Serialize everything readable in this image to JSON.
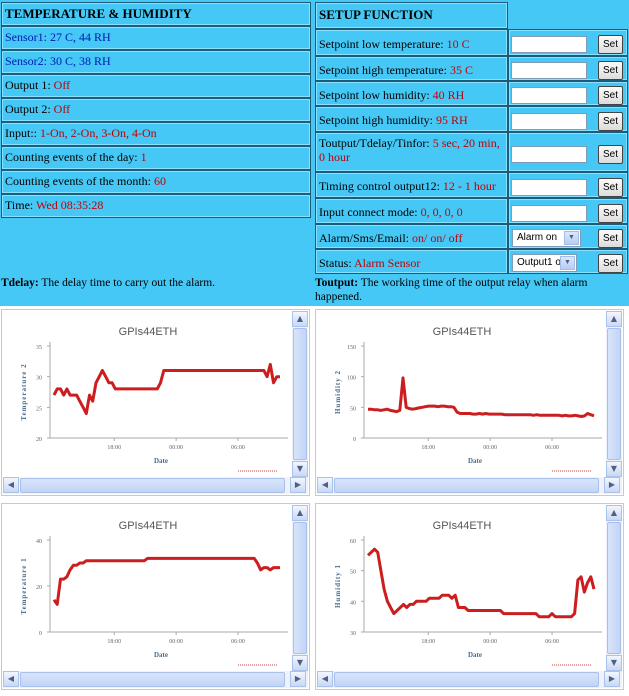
{
  "left_panel": {
    "title": "TEMPERATURE & HUMIDITY",
    "sensor1": "Sensor1: 27 C, 44 RH",
    "sensor2": "Sensor2: 30 C, 38 RH",
    "output1": {
      "label": "Output 1: ",
      "value": "Off"
    },
    "output2": {
      "label": "Output 2: ",
      "value": "Off"
    },
    "input": {
      "label": "Input:: ",
      "value": "1-On, 2-On, 3-On, 4-On"
    },
    "count_day": {
      "label": "Counting events of the day: ",
      "value": "1"
    },
    "count_month": {
      "label": "Counting events of the month: ",
      "value": "60"
    },
    "time": {
      "label": "Time: ",
      "value": "Wed 08:35:28"
    }
  },
  "right_panel": {
    "title": "SETUP FUNCTION",
    "rows": [
      {
        "label": "Setpoint low temperature: ",
        "value": "10 C",
        "button": "Set"
      },
      {
        "label": "Setpoint high temperature: ",
        "value": "35 C",
        "button": "Set"
      },
      {
        "label": "Setpoint low humidity: ",
        "value": "40 RH",
        "button": "Set"
      },
      {
        "label": "Setpoint high humidity: ",
        "value": "95 RH",
        "button": "Set"
      },
      {
        "label": "Toutput/Tdelay/Tinfor: ",
        "value": "5 sec, 20 min, 0 hour",
        "button": "Set"
      },
      {
        "label": "Timing control output12: ",
        "value": "12 - 1 hour",
        "button": "Set"
      },
      {
        "label": "Input connect mode: ",
        "value": "0, 0, 0, 0",
        "button": "Set"
      },
      {
        "label": "Alarm/Sms/Email: ",
        "value": "on/ on/ off",
        "button": "Set",
        "select": "Alarm on"
      },
      {
        "label": "Status: ",
        "value": "Alarm Sensor",
        "button": "Set",
        "select": "Output1 on"
      }
    ]
  },
  "notes": {
    "tdelay_term": "Tdelay:",
    "tdelay_text": " The delay time to carry out the alarm.",
    "toutput_term": "Toutput:",
    "toutput_text": " The working time of the output relay when alarm happened."
  },
  "colors": {
    "panel_bg": "#45c8f5",
    "value_red": "#c00000",
    "sensor_blue": "#0018b4",
    "line_red": "#cc1e1e"
  },
  "chart_data": [
    {
      "type": "line",
      "title": "GPIs44ETH",
      "xlabel": "Date",
      "ylabel": "Temperature 2",
      "x_ticks": [
        "18:00",
        "00:00",
        "06:00"
      ],
      "y_ticks": [
        20,
        25,
        30,
        35
      ],
      "ylim": [
        20,
        35
      ],
      "series": [
        {
          "values": [
            27,
            28,
            28,
            27,
            28,
            27,
            27,
            27,
            26,
            25,
            24,
            27,
            26,
            29,
            30,
            31,
            30,
            29,
            29,
            28,
            28,
            28,
            28,
            28,
            28,
            28,
            28,
            28,
            28,
            28,
            28,
            28,
            28,
            29,
            31,
            31,
            31,
            31,
            31,
            31,
            31,
            31,
            31,
            31,
            31,
            31,
            31,
            31,
            31,
            31,
            31,
            31,
            31,
            31,
            31,
            31,
            31,
            31,
            31,
            31,
            31,
            31,
            31,
            31,
            31,
            31,
            30,
            32,
            29,
            30,
            30
          ]
        }
      ]
    },
    {
      "type": "line",
      "title": "GPIs44ETH",
      "xlabel": "Date",
      "ylabel": "Humidity 2",
      "x_ticks": [
        "18:00",
        "00:00",
        "06:00"
      ],
      "y_ticks": [
        0,
        50,
        100,
        150
      ],
      "ylim": [
        0,
        150
      ],
      "series": [
        {
          "values": [
            47,
            47,
            46,
            46,
            45,
            46,
            47,
            45,
            44,
            43,
            45,
            98,
            50,
            48,
            47,
            48,
            49,
            50,
            51,
            52,
            52,
            52,
            51,
            52,
            52,
            51,
            51,
            50,
            42,
            40,
            40,
            40,
            40,
            39,
            39,
            40,
            39,
            40,
            39,
            39,
            39,
            39,
            39,
            38,
            38,
            38,
            38,
            38,
            38,
            38,
            38,
            38,
            37,
            38,
            37,
            37,
            37,
            37,
            37,
            37,
            37,
            36,
            37,
            36,
            36,
            37,
            36,
            35,
            36,
            40,
            38,
            36
          ]
        }
      ]
    },
    {
      "type": "line",
      "title": "GPIs44ETH",
      "xlabel": "Date",
      "ylabel": "Temperature 1",
      "x_ticks": [
        "18:00",
        "00:00",
        "06:00"
      ],
      "y_ticks": [
        0,
        20,
        40
      ],
      "ylim": [
        0,
        40
      ],
      "series": [
        {
          "values": [
            14,
            12,
            23,
            23,
            24,
            27,
            29,
            29,
            30,
            30,
            31,
            31,
            31,
            31,
            31,
            31,
            31,
            31,
            31,
            31,
            31,
            31,
            31,
            31,
            31,
            31,
            31,
            31,
            31,
            32,
            32,
            32,
            32,
            32,
            32,
            32,
            32,
            32,
            32,
            32,
            32,
            32,
            32,
            32,
            32,
            32,
            32,
            32,
            32,
            32,
            32,
            32,
            32,
            32,
            32,
            32,
            32,
            32,
            32,
            32,
            32,
            32,
            32,
            30,
            27,
            28,
            28,
            27,
            28,
            28,
            28
          ]
        }
      ]
    },
    {
      "type": "line",
      "title": "GPIs44ETH",
      "xlabel": "Date",
      "ylabel": "Humidity 1",
      "x_ticks": [
        "18:00",
        "00:00",
        "06:00"
      ],
      "y_ticks": [
        30,
        40,
        50,
        60
      ],
      "ylim": [
        30,
        60
      ],
      "series": [
        {
          "values": [
            55,
            56,
            57,
            56,
            50,
            44,
            40,
            38,
            36,
            37,
            38,
            39,
            38,
            39,
            39,
            40,
            40,
            40,
            40,
            41,
            41,
            41,
            41,
            42,
            42,
            42,
            41,
            42,
            38,
            38,
            38,
            37,
            37,
            37,
            37,
            37,
            37,
            37,
            37,
            37,
            37,
            37,
            36,
            36,
            36,
            36,
            36,
            36,
            36,
            36,
            36,
            36,
            36,
            35,
            35,
            35,
            35,
            36,
            35,
            35,
            35,
            35,
            35,
            35,
            36,
            47,
            48,
            43,
            46,
            48,
            44
          ]
        }
      ]
    }
  ]
}
